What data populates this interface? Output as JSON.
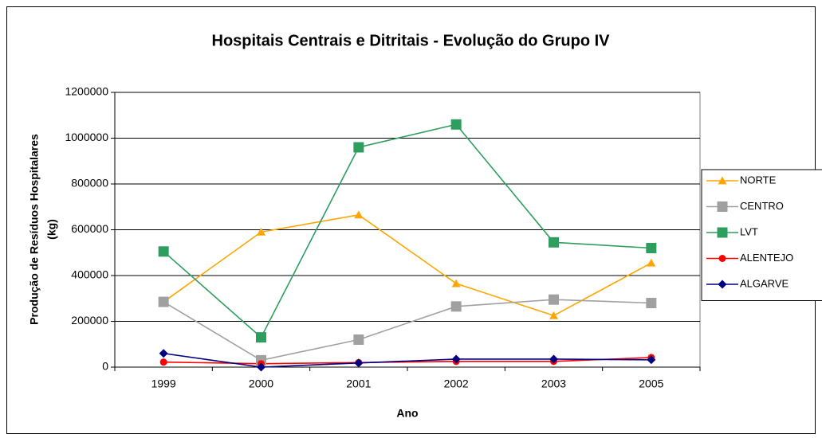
{
  "chart_data": {
    "type": "line",
    "title": "Hospitais Centrais e Ditritais - Evolução do Grupo IV",
    "xlabel": "Ano",
    "ylabel": [
      "Produção de Resíduos Hospitalares",
      "(kg)"
    ],
    "categories": [
      "1999",
      "2000",
      "2001",
      "2002",
      "2003",
      "2005"
    ],
    "series": [
      {
        "name": "NORTE",
        "color": "#ffa500",
        "marker": "triangle",
        "values": [
          285000,
          590000,
          665000,
          365000,
          225000,
          455000
        ]
      },
      {
        "name": "CENTRO",
        "color": "#a0a0a0",
        "marker": "square",
        "values": [
          285000,
          30000,
          120000,
          265000,
          295000,
          280000
        ]
      },
      {
        "name": "LVT",
        "color": "#2e9e5e",
        "marker": "square",
        "values": [
          505000,
          130000,
          960000,
          1060000,
          545000,
          520000
        ]
      },
      {
        "name": "ALENTEJO",
        "color": "#ff0000",
        "marker": "circle",
        "values": [
          22000,
          15000,
          20000,
          25000,
          25000,
          42000
        ]
      },
      {
        "name": "ALGARVE",
        "color": "#000080",
        "marker": "diamond",
        "values": [
          60000,
          0,
          18000,
          35000,
          35000,
          32000
        ]
      }
    ],
    "ylim": [
      0,
      1200000
    ],
    "yticks": [
      0,
      200000,
      400000,
      600000,
      800000,
      1000000,
      1200000
    ],
    "grid": true,
    "legend": "right"
  }
}
